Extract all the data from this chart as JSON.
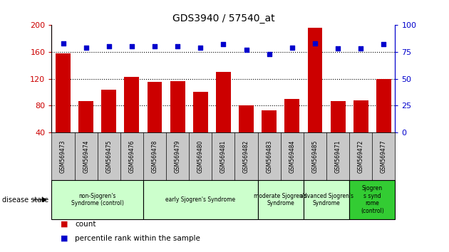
{
  "title": "GDS3940 / 57540_at",
  "samples": [
    "GSM569473",
    "GSM569474",
    "GSM569475",
    "GSM569476",
    "GSM569478",
    "GSM569479",
    "GSM569480",
    "GSM569481",
    "GSM569482",
    "GSM569483",
    "GSM569484",
    "GSM569485",
    "GSM569471",
    "GSM569472",
    "GSM569477"
  ],
  "counts": [
    158,
    87,
    104,
    123,
    115,
    116,
    100,
    130,
    80,
    73,
    90,
    196,
    87,
    88,
    120
  ],
  "percentile_ranks": [
    83,
    79,
    80,
    80,
    80,
    80,
    79,
    82,
    77,
    73,
    79,
    83,
    78,
    78,
    82
  ],
  "bar_color": "#cc0000",
  "dot_color": "#0000cc",
  "ylim_left": [
    40,
    200
  ],
  "ylim_right": [
    0,
    100
  ],
  "yticks_left": [
    40,
    80,
    120,
    160,
    200
  ],
  "yticks_right": [
    0,
    25,
    50,
    75,
    100
  ],
  "grid_lines": [
    80,
    120,
    160
  ],
  "left_axis_color": "#cc0000",
  "right_axis_color": "#0000cc",
  "tick_label_bg": "#c8c8c8",
  "group_defs": [
    {
      "indices": [
        0,
        1,
        2,
        3
      ],
      "label": "non-Sjogren's\nSyndrome (control)",
      "color": "#ccffcc"
    },
    {
      "indices": [
        4,
        5,
        6,
        7,
        8
      ],
      "label": "early Sjogren's Syndrome",
      "color": "#ccffcc"
    },
    {
      "indices": [
        9,
        10
      ],
      "label": "moderate Sjogren's\nSyndrome",
      "color": "#ccffcc"
    },
    {
      "indices": [
        11,
        12
      ],
      "label": "advanced Sjogren's\nSyndrome",
      "color": "#ccffcc"
    },
    {
      "indices": [
        13,
        14
      ],
      "label": "Sjogren\ns synd\nrome\n(control)",
      "color": "#33cc33"
    }
  ],
  "disease_state_label": "disease state",
  "legend_count": "count",
  "legend_pct": "percentile rank within the sample"
}
